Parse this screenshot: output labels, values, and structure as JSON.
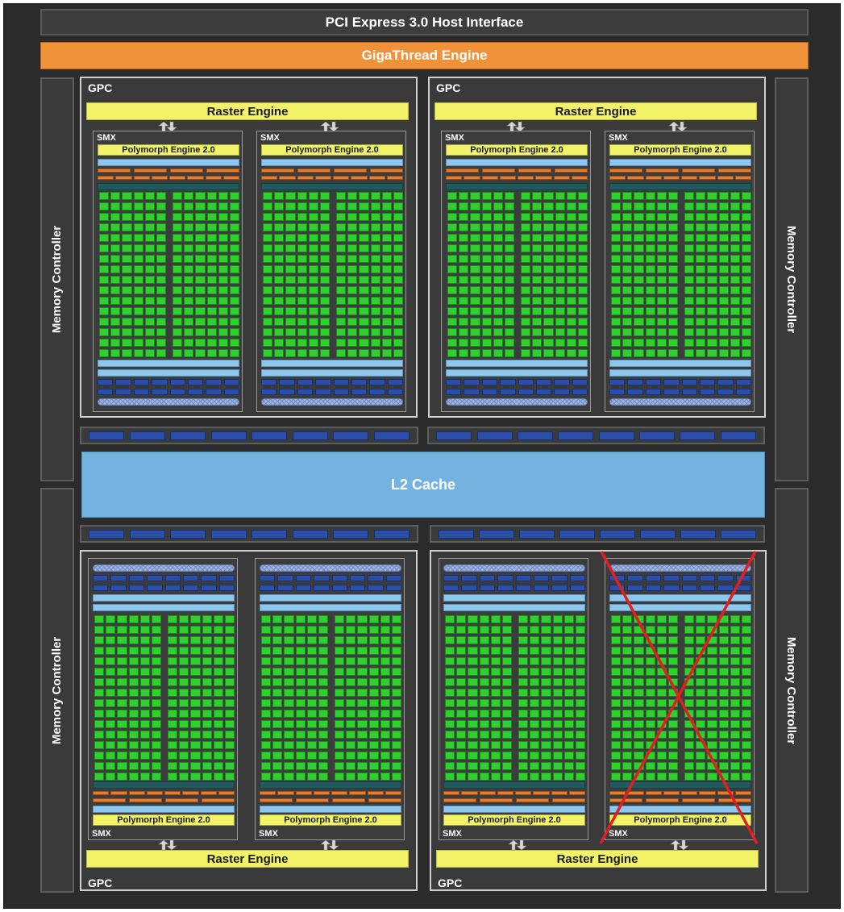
{
  "top": {
    "pcie_label": "PCI Express 3.0 Host Interface",
    "gigathread_label": "GigaThread Engine"
  },
  "memory_controllers": [
    {
      "label": "Memory Controller"
    },
    {
      "label": "Memory Controller"
    },
    {
      "label": "Memory Controller"
    },
    {
      "label": "Memory Controller"
    }
  ],
  "l2_cache_label": "L2 Cache",
  "gpcs": [
    {
      "label": "GPC",
      "raster_label": "Raster Engine",
      "smx": [
        {
          "label": "SMX",
          "polymorph_label": "Polymorph Engine 2.0",
          "disabled": false
        },
        {
          "label": "SMX",
          "polymorph_label": "Polymorph Engine 2.0",
          "disabled": false
        }
      ]
    },
    {
      "label": "GPC",
      "raster_label": "Raster Engine",
      "smx": [
        {
          "label": "SMX",
          "polymorph_label": "Polymorph Engine 2.0",
          "disabled": false
        },
        {
          "label": "SMX",
          "polymorph_label": "Polymorph Engine 2.0",
          "disabled": false
        }
      ]
    },
    {
      "label": "GPC",
      "raster_label": "Raster Engine",
      "smx": [
        {
          "label": "SMX",
          "polymorph_label": "Polymorph Engine 2.0",
          "disabled": false
        },
        {
          "label": "SMX",
          "polymorph_label": "Polymorph Engine 2.0",
          "disabled": false
        }
      ]
    },
    {
      "label": "GPC",
      "raster_label": "Raster Engine",
      "smx": [
        {
          "label": "SMX",
          "polymorph_label": "Polymorph Engine 2.0",
          "disabled": false
        },
        {
          "label": "SMX",
          "polymorph_label": "Polymorph Engine 2.0",
          "disabled": true
        }
      ]
    }
  ],
  "colors": {
    "cuda_core": "#2fd030",
    "disabled_cross": "#e02020"
  }
}
